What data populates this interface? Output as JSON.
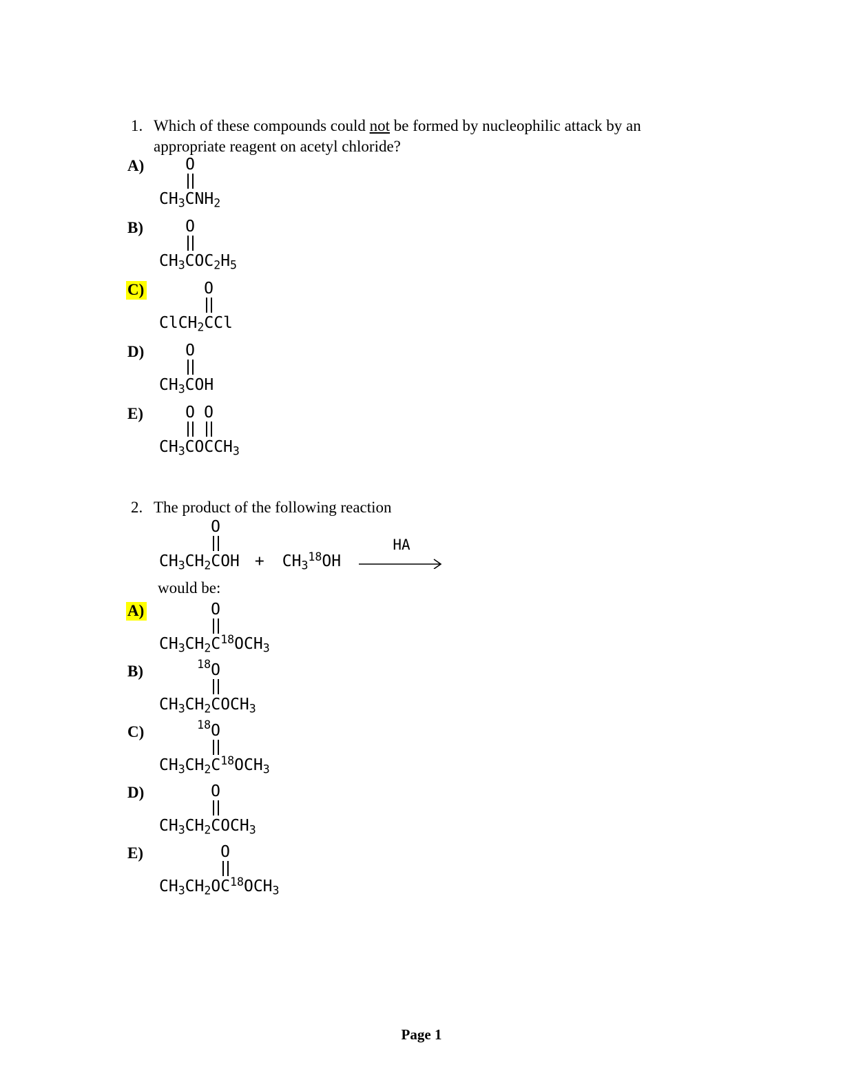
{
  "symbols": {
    "o_atom": "O"
  },
  "colors": {
    "highlight": "#ffff00"
  },
  "q1": {
    "number": "1.",
    "line1_before": "Which of these compounds could ",
    "line1_underlined": "not",
    "line1_after": " be formed by nucleophilic attack by an",
    "line2": "appropriate reagent on acetyl chloride?",
    "options": [
      {
        "label": "A)",
        "highlighted": false,
        "formula": "CH~3~CNH~2~"
      },
      {
        "label": "B)",
        "highlighted": false,
        "formula": "CH~3~COC~2~H~5~"
      },
      {
        "label": "C)",
        "highlighted": true,
        "formula": "ClCH~2~CCl"
      },
      {
        "label": "D)",
        "highlighted": false,
        "formula": "CH~3~COH"
      },
      {
        "label": "E)",
        "highlighted": false,
        "formula": "CH~3~COCCH~3~"
      }
    ]
  },
  "q2": {
    "number": "2.",
    "text": "The product of the following reaction",
    "reaction": {
      "left_formula": "CH~3~CH~2~COH",
      "plus": "+",
      "right_formula": "CH~3~^18^OH",
      "arrow_label": "HA"
    },
    "would_be": "would be:",
    "options": [
      {
        "label": "A)",
        "highlighted": true,
        "formula": "CH~3~CH~2~C^18^OCH~3~"
      },
      {
        "label": "B)",
        "highlighted": false,
        "o_iso": "18",
        "formula": "CH~3~CH~2~COCH~3~"
      },
      {
        "label": "C)",
        "highlighted": false,
        "o_iso": "18",
        "formula": "CH~3~CH~2~C^18^OCH~3~"
      },
      {
        "label": "D)",
        "highlighted": false,
        "formula": "CH~3~CH~2~COCH~3~"
      },
      {
        "label": "E)",
        "highlighted": false,
        "formula": "CH~3~CH~2~OC^18^OCH~3~"
      }
    ]
  },
  "footer": {
    "text": "Page 1"
  }
}
